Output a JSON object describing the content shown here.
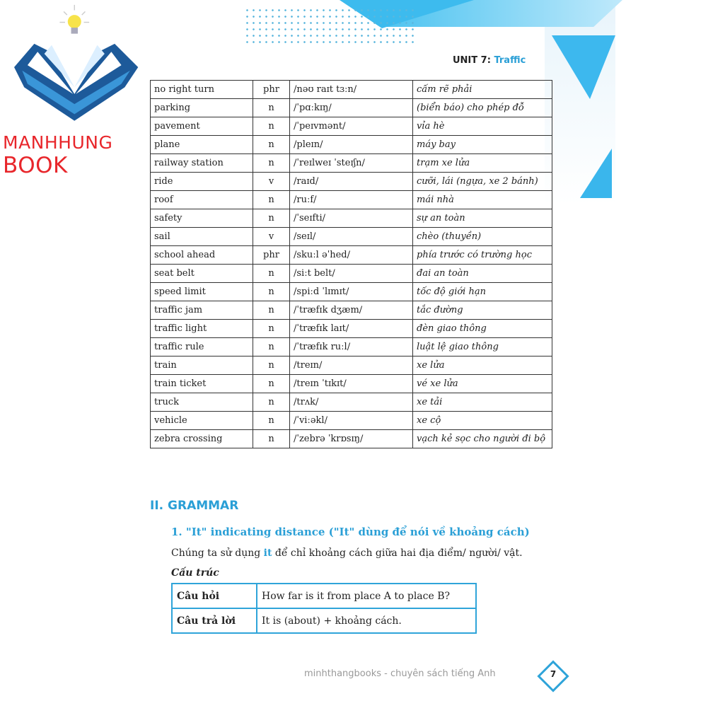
{
  "header": {
    "unit_prefix": "UNIT 7:",
    "unit_title": "Traffic"
  },
  "watermark": {
    "brand_a": "MANHHUNG",
    "brand_b": "BOOK"
  },
  "vocab": [
    [
      "no right turn",
      "phr",
      "/nəʊ raɪt tɜːn/",
      "cấm rẽ phải"
    ],
    [
      "parking",
      "n",
      "/ˈpɑːkɪŋ/",
      "(biển báo) cho phép đỗ"
    ],
    [
      "pavement",
      "n",
      "/ˈpeɪvmənt/",
      "vỉa hè"
    ],
    [
      "plane",
      "n",
      "/pleɪn/",
      "máy bay"
    ],
    [
      "railway station",
      "n",
      "/ˈreɪlweɪ ˈsteɪʃn/",
      "trạm xe lửa"
    ],
    [
      "ride",
      "v",
      "/raɪd/",
      "cưỡi, lái (ngựa, xe 2 bánh)"
    ],
    [
      "roof",
      "n",
      "/ruːf/",
      "mái nhà"
    ],
    [
      "safety",
      "n",
      "/ˈseɪfti/",
      "sự an toàn"
    ],
    [
      "sail",
      "v",
      "/seɪl/",
      "chèo (thuyền)"
    ],
    [
      "school ahead",
      "phr",
      "/skuːl əˈhed/",
      "phía trước có trường học"
    ],
    [
      "seat belt",
      "n",
      "/siːt belt/",
      "đai an toàn"
    ],
    [
      "speed limit",
      "n",
      "/spiːd ˈlɪmɪt/",
      "tốc độ giới hạn"
    ],
    [
      "traffic jam",
      "n",
      "/ˈtræfɪk dʒæm/",
      "tắc đường"
    ],
    [
      "traffic light",
      "n",
      "/ˈtræfɪk laɪt/",
      "đèn giao thông"
    ],
    [
      "traffic rule",
      "n",
      "/ˈtræfɪk ruːl/",
      "luật lệ giao thông"
    ],
    [
      "train",
      "n",
      "/treɪn/",
      "xe lửa"
    ],
    [
      "train ticket",
      "n",
      "/treɪn ˈtɪkɪt/",
      "vé xe lửa"
    ],
    [
      "truck",
      "n",
      "/trʌk/",
      "xe tải"
    ],
    [
      "vehicle",
      "n",
      "/ˈviːəkl/",
      "xe cộ"
    ],
    [
      "zebra crossing",
      "n",
      "/ˈzebrə ˈkrɒsɪŋ/",
      "vạch kẻ sọc cho người đi bộ"
    ]
  ],
  "grammar": {
    "heading": "II. GRAMMAR",
    "sub": "1. \"It\" indicating distance (\"It\" dùng để nói về khoảng cách)",
    "desc_a": "Chúng ta sử dụng ",
    "desc_it": "it",
    "desc_b": " để chỉ khoảng cách giữa hai địa điểm/ người/ vật.",
    "structure_label": "Cấu trúc",
    "rows": [
      [
        "Câu hỏi",
        "How far is it from place A to place B?"
      ],
      [
        "Câu trả lời",
        "It is (about) + khoảng cách."
      ]
    ]
  },
  "footer": {
    "text": "minhthangbooks - chuyên sách tiếng Anh",
    "page": "7"
  },
  "colors": {
    "accent": "#2a9fd6",
    "brand": "#e8262b"
  }
}
